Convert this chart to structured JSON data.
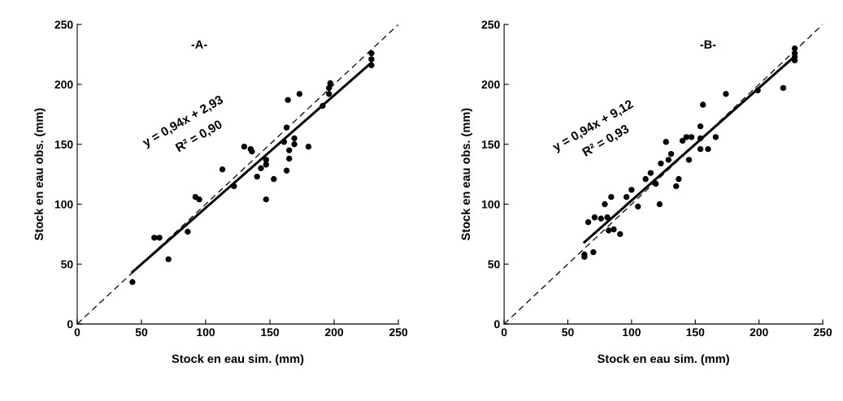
{
  "chart_data": [
    {
      "type": "scatter",
      "title": "-A-",
      "xlabel": "Stock en eau sim. (mm)",
      "ylabel": "Stock en eau obs. (mm)",
      "xlim": [
        0,
        250
      ],
      "ylim": [
        0,
        250
      ],
      "xticks": [
        0,
        50,
        100,
        150,
        200,
        250
      ],
      "yticks": [
        0,
        50,
        100,
        150,
        200,
        250
      ],
      "grid": false,
      "legend": false,
      "marker": "circle",
      "annotations": [
        "y = 0,94x + 2,93",
        "R² = 0,90"
      ],
      "series": [
        {
          "color": "#000000",
          "x": [
            43,
            60,
            64,
            71,
            86,
            92,
            95,
            113,
            122,
            130,
            135,
            136,
            140,
            143,
            147,
            147,
            147,
            153,
            161,
            163,
            164,
            163,
            165,
            165,
            169,
            169,
            173,
            180,
            191,
            196,
            196,
            197,
            229,
            229,
            229
          ],
          "values": [
            35,
            72,
            72,
            54,
            77,
            106,
            104,
            129,
            115,
            148,
            146,
            144,
            123,
            130,
            133,
            137,
            104,
            121,
            152,
            164,
            187,
            128,
            145,
            138,
            155,
            150,
            192,
            148,
            182,
            192,
            197,
            201,
            226,
            221,
            216
          ]
        },
        {
          "type": "line",
          "color": "#000000",
          "marker": "none",
          "line_style": "solid",
          "x": [
            43,
            229
          ],
          "values": [
            43.4,
            218.2
          ]
        },
        {
          "type": "line",
          "color": "#000000",
          "marker": "none",
          "line_style": "dashed",
          "x": [
            0,
            250
          ],
          "values": [
            0,
            250
          ]
        }
      ]
    },
    {
      "type": "scatter",
      "title": "-B-",
      "xlabel": "Stock en eau sim. (mm)",
      "ylabel": "Stock en eau obs. (mm)",
      "xlim": [
        0,
        250
      ],
      "ylim": [
        0,
        250
      ],
      "xticks": [
        0,
        50,
        100,
        150,
        200,
        250
      ],
      "yticks": [
        0,
        50,
        100,
        150,
        200,
        250
      ],
      "grid": false,
      "legend": false,
      "marker": "circle",
      "annotations": [
        "y = 0,94x + 9,12",
        "R² = 0,93"
      ],
      "series": [
        {
          "color": "#000000",
          "x": [
            63,
            63,
            70,
            66,
            71,
            76,
            81,
            79,
            84,
            82,
            86,
            91,
            96,
            100,
            105,
            111,
            115,
            119,
            122,
            123,
            127,
            129,
            131,
            135,
            137,
            140,
            143,
            147,
            145,
            154,
            154,
            154,
            156,
            160,
            166,
            174,
            199,
            219,
            228,
            228,
            228,
            228
          ],
          "values": [
            56,
            58,
            60,
            85,
            89,
            88,
            89,
            100,
            106,
            78,
            79,
            75,
            106,
            112,
            98,
            121,
            126,
            117,
            100,
            134,
            152,
            137,
            142,
            115,
            121,
            153,
            156,
            156,
            137,
            165,
            155,
            146,
            183,
            146,
            156,
            192,
            195,
            197,
            230,
            226,
            223,
            220
          ]
        },
        {
          "type": "line",
          "color": "#000000",
          "marker": "none",
          "line_style": "solid",
          "x": [
            63,
            228
          ],
          "values": [
            68.3,
            223.4
          ]
        },
        {
          "type": "line",
          "color": "#000000",
          "marker": "none",
          "line_style": "dashed",
          "x": [
            0,
            250
          ],
          "values": [
            0,
            250
          ]
        }
      ]
    }
  ]
}
